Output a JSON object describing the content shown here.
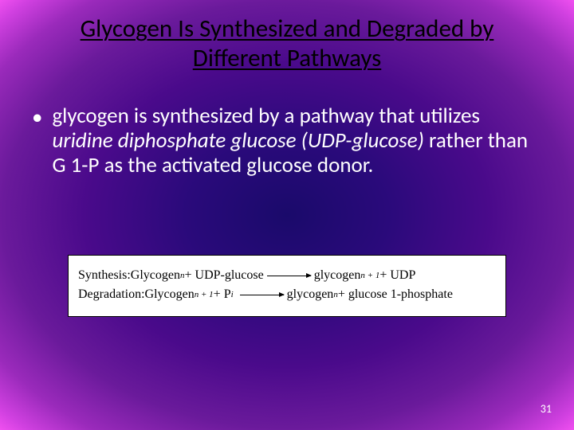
{
  "title": "Glycogen Is Synthesized and Degraded by Different Pathways",
  "bullet": {
    "pre": "glycogen is synthesized by a pathway that utilizes ",
    "italic": "uridine diphosphate glucose (UDP-glucose)",
    "post": " rather than G 1-P as the activated glucose donor."
  },
  "reactions": {
    "synth_label": "Synthesis: ",
    "synth_lhs_a": "Glycogen",
    "synth_lhs_a_sub": "n",
    "synth_lhs_b": " + UDP-glucose ",
    "synth_rhs_a": " glycogen",
    "synth_rhs_a_sub": "n + 1",
    "synth_rhs_b": " + UDP",
    "degr_label": "Degradation: ",
    "degr_lhs_a": "Glycogen",
    "degr_lhs_a_sub": "n + 1",
    "degr_lhs_b": " + P",
    "degr_lhs_b_sub": "i",
    "degr_rhs_a": " glycogen",
    "degr_rhs_a_sub": "n",
    "degr_rhs_b": " + glucose 1-phosphate"
  },
  "page_number": "31",
  "colors": {
    "title_color": "#000000",
    "body_color": "#ffffff",
    "box_bg": "#ffffff",
    "box_text": "#000000"
  },
  "fontsize": {
    "title": 31,
    "body": 27,
    "reaction": 16,
    "pagenum": 14
  }
}
